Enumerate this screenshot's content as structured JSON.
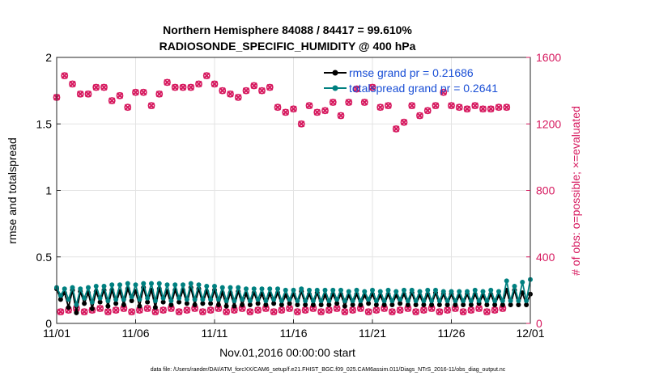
{
  "chart_data": {
    "type": "line",
    "title": "Northern Hemisphere 84088 / 84417 = 99.610%",
    "subtitle": "RADIOSONDE_SPECIFIC_HUMIDITY @ 400 hPa",
    "xlabel": "Nov.01,2016 00:00:00 start",
    "ylabel": "rmse and totalspread",
    "ylabel_right": "# of obs: o=possible; ×=evaluated",
    "footer": "data file: /Users/raeder/DAI/ATM_forcXX/CAM6_setup/f.e21.FHIST_BGC.f09_025.CAM6assim.011/Diags_NTrS_2016-11/obs_diag_output.nc",
    "xlim": [
      0,
      30
    ],
    "ylim": [
      0,
      2
    ],
    "ylim_right": [
      0,
      1600
    ],
    "x_tick_labels": [
      "11/01",
      "11/06",
      "11/11",
      "11/16",
      "11/21",
      "11/26",
      "12/01"
    ],
    "y_tick_labels": [
      "0",
      "0.5",
      "1",
      "1.5",
      "2"
    ],
    "y2_tick_labels": [
      "0",
      "400",
      "800",
      "1200",
      "1600"
    ],
    "grid": true,
    "x_step_days": 0.25,
    "legend": {
      "position": "top-right",
      "entries": [
        "rmse grand pr = 0.21686",
        "totalspread grand pr = 0.2641"
      ]
    },
    "colors": {
      "rmse": "#000000",
      "totalspread": "#008080",
      "obs": "#d6185e",
      "legend_text": "#1a4fd6"
    },
    "series": [
      {
        "name": "rmse",
        "axis": "left",
        "values": [
          0.26,
          0.18,
          0.23,
          0.12,
          0.25,
          0.08,
          0.24,
          0.15,
          0.23,
          0.11,
          0.24,
          0.16,
          0.25,
          0.13,
          0.25,
          0.15,
          0.24,
          0.14,
          0.26,
          0.17,
          0.24,
          0.13,
          0.27,
          0.16,
          0.25,
          0.12,
          0.26,
          0.16,
          0.24,
          0.14,
          0.25,
          0.16,
          0.25,
          0.15,
          0.27,
          0.14,
          0.26,
          0.15,
          0.24,
          0.15,
          0.25,
          0.14,
          0.23,
          0.13,
          0.23,
          0.13,
          0.24,
          0.14,
          0.22,
          0.14,
          0.23,
          0.15,
          0.22,
          0.14,
          0.22,
          0.15,
          0.23,
          0.14,
          0.21,
          0.15,
          0.22,
          0.14,
          0.24,
          0.14,
          0.22,
          0.14,
          0.23,
          0.14,
          0.21,
          0.14,
          0.22,
          0.15,
          0.22,
          0.13,
          0.21,
          0.14,
          0.22,
          0.14,
          0.21,
          0.15,
          0.22,
          0.14,
          0.21,
          0.14,
          0.22,
          0.14,
          0.21,
          0.15,
          0.22,
          0.14,
          0.23,
          0.14,
          0.21,
          0.14,
          0.22,
          0.14,
          0.23,
          0.14,
          0.22,
          0.14,
          0.22,
          0.14,
          0.21,
          0.14,
          0.22,
          0.14,
          0.22,
          0.15,
          0.21,
          0.14,
          0.22,
          0.14,
          0.21,
          0.14,
          0.25,
          0.14,
          0.25,
          0.14,
          0.23,
          0.14,
          0.22
        ]
      },
      {
        "name": "totalspread",
        "axis": "left",
        "values": [
          0.27,
          0.21,
          0.26,
          0.18,
          0.27,
          0.14,
          0.26,
          0.19,
          0.27,
          0.16,
          0.28,
          0.19,
          0.28,
          0.17,
          0.29,
          0.18,
          0.29,
          0.18,
          0.3,
          0.2,
          0.29,
          0.18,
          0.3,
          0.19,
          0.3,
          0.17,
          0.3,
          0.19,
          0.29,
          0.17,
          0.29,
          0.19,
          0.29,
          0.18,
          0.3,
          0.18,
          0.29,
          0.18,
          0.28,
          0.18,
          0.28,
          0.18,
          0.27,
          0.17,
          0.27,
          0.17,
          0.27,
          0.18,
          0.26,
          0.17,
          0.26,
          0.18,
          0.26,
          0.17,
          0.26,
          0.18,
          0.26,
          0.17,
          0.25,
          0.18,
          0.25,
          0.17,
          0.26,
          0.17,
          0.25,
          0.17,
          0.25,
          0.17,
          0.25,
          0.17,
          0.25,
          0.18,
          0.25,
          0.17,
          0.24,
          0.17,
          0.25,
          0.17,
          0.24,
          0.18,
          0.25,
          0.17,
          0.24,
          0.17,
          0.25,
          0.17,
          0.24,
          0.18,
          0.25,
          0.17,
          0.25,
          0.17,
          0.24,
          0.17,
          0.25,
          0.17,
          0.25,
          0.17,
          0.24,
          0.17,
          0.24,
          0.17,
          0.24,
          0.17,
          0.24,
          0.17,
          0.25,
          0.17,
          0.24,
          0.17,
          0.25,
          0.17,
          0.24,
          0.17,
          0.32,
          0.17,
          0.28,
          0.17,
          0.31,
          0.17,
          0.33
        ]
      },
      {
        "name": "# of obs possible",
        "axis": "right",
        "values": [
          1360,
          70,
          1490,
          80,
          1440,
          90,
          1380,
          70,
          1380,
          80,
          1420,
          90,
          1420,
          70,
          1340,
          80,
          1370,
          90,
          1300,
          70,
          1390,
          80,
          1390,
          90,
          1310,
          70,
          1380,
          80,
          1450,
          90,
          1420,
          70,
          1420,
          80,
          1420,
          90,
          1440,
          70,
          1490,
          80,
          1440,
          90,
          1400,
          70,
          1380,
          80,
          1360,
          90,
          1400,
          70,
          1430,
          80,
          1400,
          90,
          1420,
          70,
          1300,
          80,
          1270,
          90,
          1290,
          70,
          1200,
          80,
          1310,
          90,
          1270,
          70,
          1280,
          80,
          1330,
          90,
          1250,
          70,
          1330,
          80,
          1410,
          90,
          1330,
          70,
          1420,
          80,
          1300,
          90,
          1310,
          70,
          1170,
          80,
          1210,
          90,
          1310,
          70,
          1250,
          80,
          1280,
          90,
          1310,
          70,
          1390,
          80,
          1310,
          90,
          1300,
          70,
          1290,
          80,
          1310,
          90,
          1290,
          70,
          1290,
          80,
          1300,
          90,
          1300
        ]
      },
      {
        "name": "# of obs evaluated",
        "axis": "right",
        "values": [
          1360,
          70,
          1490,
          80,
          1440,
          90,
          1380,
          70,
          1380,
          80,
          1420,
          90,
          1420,
          70,
          1340,
          80,
          1370,
          90,
          1300,
          70,
          1390,
          80,
          1390,
          90,
          1310,
          70,
          1380,
          80,
          1450,
          90,
          1420,
          70,
          1420,
          80,
          1420,
          90,
          1440,
          70,
          1490,
          80,
          1440,
          90,
          1400,
          70,
          1380,
          80,
          1360,
          90,
          1400,
          70,
          1430,
          80,
          1400,
          90,
          1420,
          70,
          1300,
          80,
          1270,
          90,
          1290,
          70,
          1200,
          80,
          1310,
          90,
          1270,
          70,
          1280,
          80,
          1330,
          90,
          1250,
          70,
          1330,
          80,
          1410,
          90,
          1330,
          70,
          1420,
          80,
          1300,
          90,
          1310,
          70,
          1170,
          80,
          1210,
          90,
          1310,
          70,
          1250,
          80,
          1280,
          90,
          1310,
          70,
          1390,
          80,
          1310,
          90,
          1300,
          70,
          1290,
          80,
          1310,
          90,
          1290,
          70,
          1290,
          80,
          1300,
          90,
          1300
        ]
      }
    ]
  }
}
